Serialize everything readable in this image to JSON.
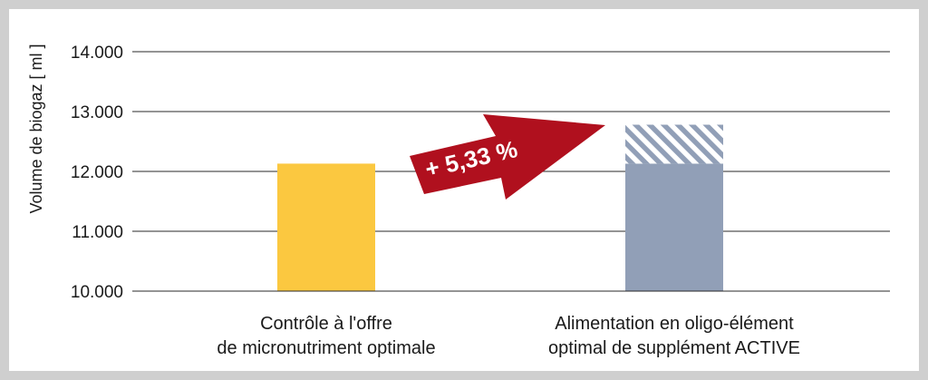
{
  "chart_data": {
    "type": "bar",
    "ylabel": "Volume de biogaz  [ ml ]",
    "ylim": [
      10000,
      14000
    ],
    "yticks": [
      10000,
      11000,
      12000,
      13000,
      14000
    ],
    "ytick_labels": [
      "10.000",
      "11.000",
      "12.000",
      "13.000",
      "14.000"
    ],
    "grid": true,
    "categories": [
      [
        "Contrôle à l'offre",
        "de micronutriment optimale"
      ],
      [
        "Alimentation en oligo-élément",
        "optimal de supplément ACTIVE"
      ]
    ],
    "values": [
      12130,
      12780
    ],
    "baseline_in_second_bar": 12130,
    "colors": {
      "control": "#fbc840",
      "active": "#919fb7",
      "increase_hatch": "#919fb7",
      "arrow": "#b0101e",
      "grid": "#2a2a2a"
    },
    "annotation": {
      "text": "+ 5,33 %",
      "shape": "red-arrow"
    }
  }
}
